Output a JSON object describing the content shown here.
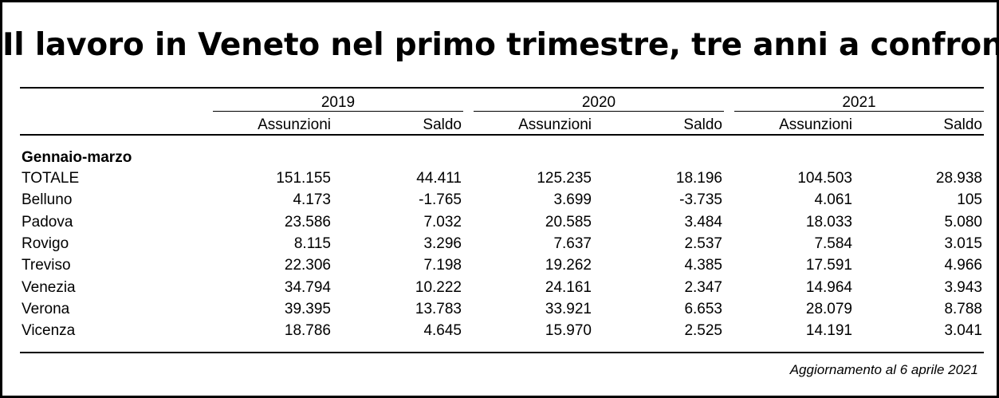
{
  "title": "Il lavoro in Veneto nel primo trimestre, tre anni a confronto",
  "years": [
    "2019",
    "2020",
    "2021"
  ],
  "subheaders": [
    "Assunzioni",
    "Saldo",
    "Assunzioni",
    "Saldo",
    "Assunzioni",
    "Saldo"
  ],
  "section_label": "Gennaio-marzo",
  "rows": [
    {
      "label": "TOTALE",
      "values": [
        "151.155",
        "44.411",
        "125.235",
        "18.196",
        "104.503",
        "28.938"
      ]
    },
    {
      "label": "Belluno",
      "values": [
        "4.173",
        "-1.765",
        "3.699",
        "-3.735",
        "4.061",
        "105"
      ]
    },
    {
      "label": "Padova",
      "values": [
        "23.586",
        "7.032",
        "20.585",
        "3.484",
        "18.033",
        "5.080"
      ]
    },
    {
      "label": "Rovigo",
      "values": [
        "8.115",
        "3.296",
        "7.637",
        "2.537",
        "7.584",
        "3.015"
      ]
    },
    {
      "label": "Treviso",
      "values": [
        "22.306",
        "7.198",
        "19.262",
        "4.385",
        "17.591",
        "4.966"
      ]
    },
    {
      "label": "Venezia",
      "values": [
        "34.794",
        "10.222",
        "24.161",
        "2.347",
        "14.964",
        "3.943"
      ]
    },
    {
      "label": "Verona",
      "values": [
        "39.395",
        "13.783",
        "33.921",
        "6.653",
        "28.079",
        "8.788"
      ]
    },
    {
      "label": "Vicenza",
      "values": [
        "18.786",
        "4.645",
        "15.970",
        "2.525",
        "14.191",
        "3.041"
      ]
    }
  ],
  "footer": "Aggiornamento al 6 aprile 2021"
}
